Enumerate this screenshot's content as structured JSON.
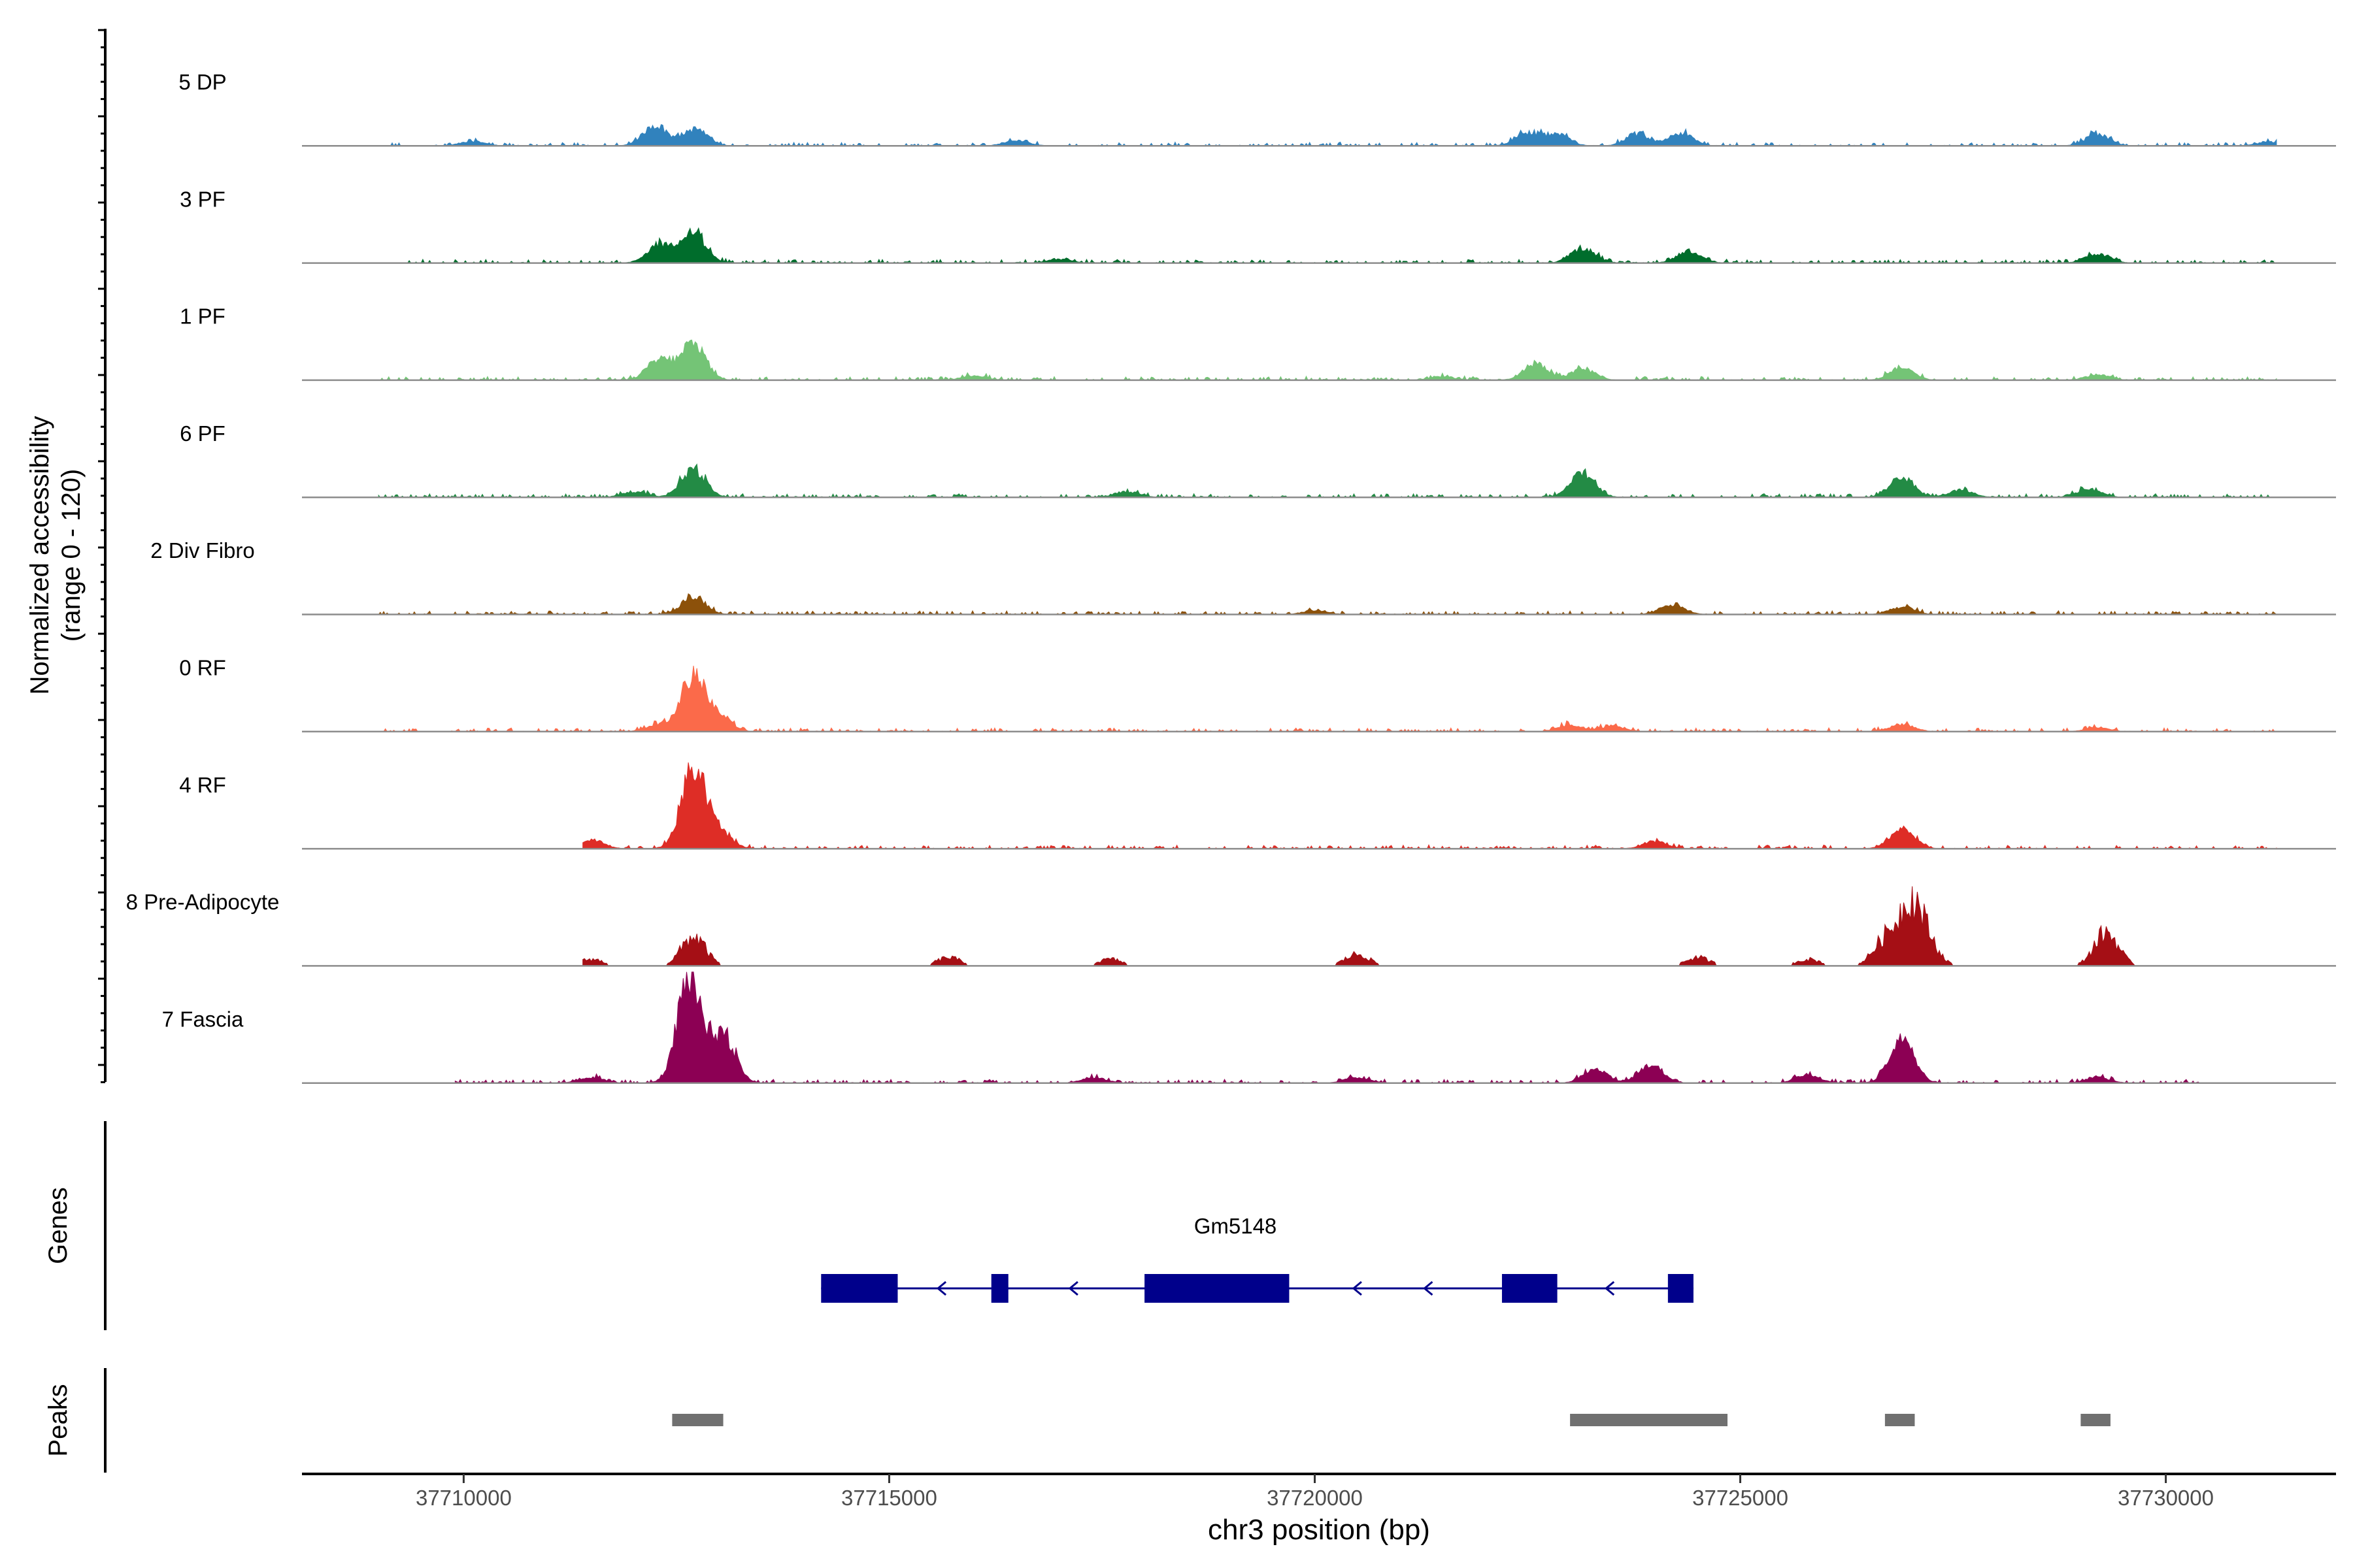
{
  "chart_data": {
    "type": "area",
    "title": "",
    "ylabel_line1": "Normalized accessibility",
    "ylabel_line2": "(range 0 - 120)",
    "xlabel": "chr3 position (bp)",
    "xlim": [
      37708100,
      37732000
    ],
    "ylim": [
      0,
      120
    ],
    "xticks": [
      37710000,
      37715000,
      37720000,
      37725000,
      37730000
    ],
    "xtick_labels": [
      "37710000",
      "37715000",
      "37720000",
      "37725000",
      "37730000"
    ],
    "series": [
      {
        "name": "5 DP",
        "color": "#3182bd",
        "start": 37709100,
        "end": 37731300,
        "peaks": [
          [
            37712250,
            22
          ],
          [
            37712720,
            18
          ],
          [
            37722500,
            14
          ],
          [
            37722850,
            12
          ],
          [
            37723800,
            12
          ],
          [
            37724300,
            14
          ],
          [
            37729200,
            12
          ],
          [
            37716500,
            6
          ],
          [
            37710100,
            5
          ],
          [
            37731200,
            4
          ]
        ]
      },
      {
        "name": "3 PF",
        "color": "#006d2c",
        "start": 37709300,
        "end": 37731300,
        "peaks": [
          [
            37712300,
            20
          ],
          [
            37712700,
            32
          ],
          [
            37723150,
            16
          ],
          [
            37724400,
            13
          ],
          [
            37729200,
            10
          ],
          [
            37717000,
            4
          ]
        ]
      },
      {
        "name": "1 PF",
        "color": "#74c476",
        "start": 37709000,
        "end": 37731300,
        "peaks": [
          [
            37712300,
            22
          ],
          [
            37712700,
            40
          ],
          [
            37722600,
            18
          ],
          [
            37723150,
            12
          ],
          [
            37726900,
            13
          ],
          [
            37729200,
            6
          ],
          [
            37716000,
            5
          ],
          [
            37721500,
            4
          ]
        ]
      },
      {
        "name": "6 PF",
        "color": "#238b45",
        "start": 37709000,
        "end": 37731300,
        "peaks": [
          [
            37712700,
            30
          ],
          [
            37723150,
            26
          ],
          [
            37726900,
            22
          ],
          [
            37727600,
            8
          ],
          [
            37729100,
            9
          ],
          [
            37717800,
            6
          ],
          [
            37712000,
            6
          ]
        ]
      },
      {
        "name": "2 Div Fibro",
        "color": "#8c510a",
        "start": 37709000,
        "end": 37731300,
        "peaks": [
          [
            37712700,
            18
          ],
          [
            37724200,
            10
          ],
          [
            37726900,
            8
          ],
          [
            37720000,
            4
          ]
        ]
      },
      {
        "name": "0 RF",
        "color": "#fb6a4a",
        "start": 37709000,
        "end": 37731300,
        "peaks": [
          [
            37712700,
            58
          ],
          [
            37713000,
            16
          ],
          [
            37712300,
            8
          ],
          [
            37726900,
            8
          ],
          [
            37723000,
            7
          ],
          [
            37723500,
            6
          ],
          [
            37729200,
            4
          ]
        ]
      },
      {
        "name": "4 RF",
        "color": "#de2d26",
        "start": 37711400,
        "end": 37731300,
        "peaks": [
          [
            37712700,
            85
          ],
          [
            37713000,
            18
          ],
          [
            37726900,
            22
          ],
          [
            37711500,
            10
          ],
          [
            37724000,
            8
          ]
        ]
      },
      {
        "name": "8 Pre-Adipocyte",
        "color": "#a50f15",
        "start": 37711400,
        "end": 37729700,
        "blocky": true,
        "peaks": [
          [
            37711500,
            8
          ],
          [
            37712700,
            35
          ],
          [
            37715700,
            10
          ],
          [
            37717600,
            8
          ],
          [
            37720500,
            14
          ],
          [
            37724500,
            10
          ],
          [
            37726700,
            30
          ],
          [
            37727000,
            70
          ],
          [
            37727200,
            22
          ],
          [
            37729300,
            40
          ],
          [
            37725800,
            8
          ]
        ]
      },
      {
        "name": "7 Fascia",
        "color": "#8c0054",
        "start": 37709900,
        "end": 37730400,
        "peaks": [
          [
            37712650,
            110
          ],
          [
            37713050,
            52
          ],
          [
            37726900,
            50
          ],
          [
            37723300,
            14
          ],
          [
            37723950,
            20
          ],
          [
            37725800,
            8
          ],
          [
            37717400,
            6
          ],
          [
            37720500,
            6
          ],
          [
            37729200,
            6
          ],
          [
            37711500,
            6
          ]
        ]
      }
    ],
    "genes_label": "Genes",
    "gene": {
      "name": "Gm5148",
      "color": "#00008b",
      "strand": "-",
      "start": 37714200,
      "end": 37724450,
      "exons": [
        [
          37714200,
          37715100
        ],
        [
          37716200,
          37716400
        ],
        [
          37718000,
          37719700
        ],
        [
          37722200,
          37722850
        ],
        [
          37724150,
          37724450
        ]
      ]
    },
    "peaks_label": "Peaks",
    "peak_regions": [
      [
        37712450,
        37713050
      ],
      [
        37723000,
        37724850
      ],
      [
        37726700,
        37727050
      ],
      [
        37729000,
        37729350
      ]
    ],
    "peak_color": "#707070"
  }
}
